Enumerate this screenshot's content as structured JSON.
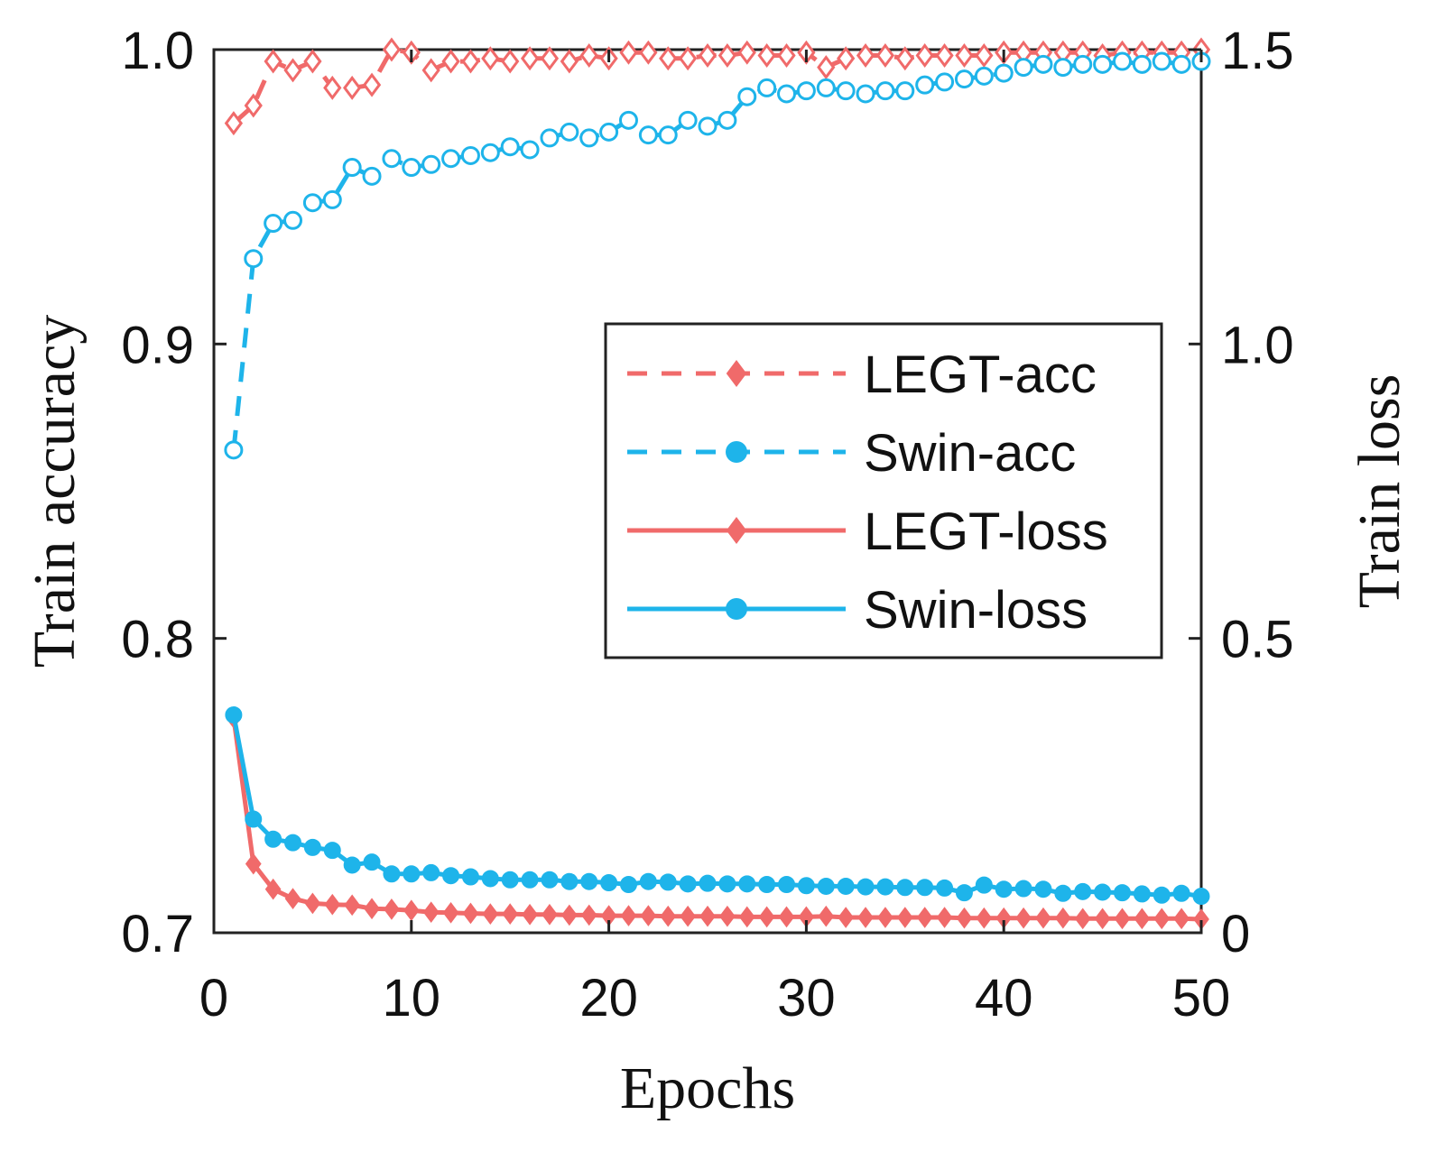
{
  "chart_data": {
    "type": "line",
    "title": "",
    "xlabel": "Epochs",
    "ylabel": "Train accuracy",
    "ylabel_right": "Train loss",
    "xlim": [
      0,
      50
    ],
    "ylim": [
      0.7,
      1.0
    ],
    "ylim_right": [
      0,
      1.5
    ],
    "x_ticks": [
      "0",
      "10",
      "20",
      "30",
      "40",
      "50"
    ],
    "y_ticks": [
      "0.7",
      "0.8",
      "0.9",
      "1.0"
    ],
    "y_ticks_right": [
      "0",
      "0.5",
      "1.0",
      "1.5"
    ],
    "legend_position": "center-right",
    "x": [
      1,
      2,
      3,
      4,
      5,
      6,
      7,
      8,
      9,
      10,
      11,
      12,
      13,
      14,
      15,
      16,
      17,
      18,
      19,
      20,
      21,
      22,
      23,
      24,
      25,
      26,
      27,
      28,
      29,
      30,
      31,
      32,
      33,
      34,
      35,
      36,
      37,
      38,
      39,
      40,
      41,
      42,
      43,
      44,
      45,
      46,
      47,
      48,
      49,
      50
    ],
    "series": [
      {
        "name": "LEGT-acc",
        "axis": "left",
        "color": "#f06a6a",
        "dashed": true,
        "marker": "diamond",
        "values": [
          0.975,
          0.981,
          0.996,
          0.993,
          0.996,
          0.987,
          0.987,
          0.988,
          1.0,
          0.999,
          0.993,
          0.996,
          0.996,
          0.997,
          0.996,
          0.997,
          0.997,
          0.996,
          0.998,
          0.997,
          0.999,
          0.999,
          0.997,
          0.997,
          0.998,
          0.998,
          0.999,
          0.998,
          0.998,
          0.999,
          0.994,
          0.997,
          0.998,
          0.998,
          0.997,
          0.998,
          0.998,
          0.998,
          0.998,
          0.999,
          0.999,
          0.999,
          0.999,
          0.999,
          0.998,
          0.999,
          0.999,
          0.999,
          0.999,
          1.0
        ]
      },
      {
        "name": "Swin-acc",
        "axis": "left",
        "color": "#1eb4ea",
        "dashed": true,
        "marker": "circle",
        "values": [
          0.864,
          0.929,
          0.941,
          0.942,
          0.948,
          0.949,
          0.96,
          0.957,
          0.963,
          0.96,
          0.961,
          0.963,
          0.964,
          0.965,
          0.967,
          0.966,
          0.97,
          0.972,
          0.97,
          0.972,
          0.976,
          0.971,
          0.971,
          0.976,
          0.974,
          0.976,
          0.984,
          0.987,
          0.985,
          0.986,
          0.987,
          0.986,
          0.985,
          0.986,
          0.986,
          0.988,
          0.989,
          0.99,
          0.991,
          0.992,
          0.994,
          0.995,
          0.994,
          0.995,
          0.995,
          0.996,
          0.995,
          0.996,
          0.995,
          0.996
        ]
      },
      {
        "name": "LEGT-loss",
        "axis": "right",
        "color": "#f06a6a",
        "dashed": false,
        "marker": "diamond",
        "values": [
          0.365,
          0.117,
          0.074,
          0.058,
          0.05,
          0.048,
          0.047,
          0.041,
          0.04,
          0.038,
          0.035,
          0.034,
          0.033,
          0.032,
          0.032,
          0.031,
          0.031,
          0.03,
          0.03,
          0.029,
          0.029,
          0.029,
          0.028,
          0.028,
          0.028,
          0.028,
          0.027,
          0.027,
          0.027,
          0.027,
          0.028,
          0.026,
          0.026,
          0.026,
          0.026,
          0.026,
          0.026,
          0.025,
          0.025,
          0.025,
          0.025,
          0.025,
          0.025,
          0.024,
          0.024,
          0.024,
          0.024,
          0.024,
          0.024,
          0.023
        ]
      },
      {
        "name": "Swin-loss",
        "axis": "right",
        "color": "#1eb4ea",
        "dashed": false,
        "marker": "circle",
        "values": [
          0.37,
          0.193,
          0.159,
          0.153,
          0.145,
          0.14,
          0.115,
          0.12,
          0.1,
          0.1,
          0.102,
          0.097,
          0.095,
          0.092,
          0.09,
          0.09,
          0.09,
          0.087,
          0.087,
          0.085,
          0.082,
          0.087,
          0.086,
          0.083,
          0.084,
          0.083,
          0.083,
          0.082,
          0.082,
          0.08,
          0.079,
          0.079,
          0.078,
          0.078,
          0.077,
          0.077,
          0.076,
          0.068,
          0.081,
          0.074,
          0.075,
          0.074,
          0.067,
          0.07,
          0.069,
          0.068,
          0.066,
          0.064,
          0.067,
          0.062
        ]
      }
    ]
  }
}
